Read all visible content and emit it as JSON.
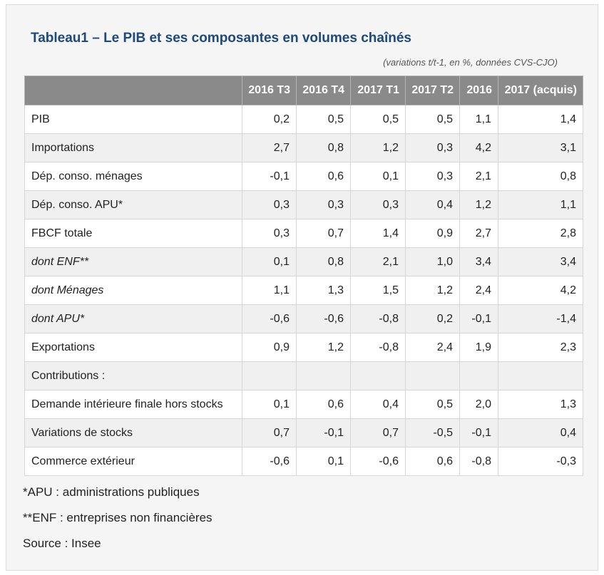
{
  "title": "Tableau1 – Le PIB et ses composantes en volumes chaînés",
  "subtitle": "(variations t/t-1, en %, données CVS-CJO)",
  "table": {
    "header_first": "",
    "headers": [
      "2016 T3",
      "2016 T4",
      "2017 T1",
      "2017 T2",
      "2016",
      "2017 (acquis)"
    ],
    "rows": [
      {
        "label": "PIB",
        "italic": false,
        "values": [
          "0,2",
          "0,5",
          "0,5",
          "0,5",
          "1,1",
          "1,4"
        ]
      },
      {
        "label": "Importations",
        "italic": false,
        "values": [
          "2,7",
          "0,8",
          "1,2",
          "0,3",
          "4,2",
          "3,1"
        ]
      },
      {
        "label": "Dép. conso. ménages",
        "italic": false,
        "values": [
          "-0,1",
          "0,6",
          "0,1",
          "0,3",
          "2,1",
          "0,8"
        ]
      },
      {
        "label": "Dép. conso. APU*",
        "italic": false,
        "values": [
          "0,3",
          "0,3",
          "0,3",
          "0,4",
          "1,2",
          "1,1"
        ]
      },
      {
        "label": "FBCF totale",
        "italic": false,
        "values": [
          "0,3",
          "0,7",
          "1,4",
          "0,9",
          "2,7",
          "2,8"
        ]
      },
      {
        "label": "dont ENF**",
        "italic": true,
        "values": [
          "0,1",
          "0,8",
          "2,1",
          "1,0",
          "3,4",
          "3,4"
        ]
      },
      {
        "label": "dont Ménages",
        "italic": true,
        "values": [
          "1,1",
          "1,3",
          "1,5",
          "1,2",
          "2,4",
          "4,2"
        ]
      },
      {
        "label": "dont APU*",
        "italic": true,
        "values": [
          "-0,6",
          "-0,6",
          "-0,8",
          "0,2",
          "-0,1",
          "-1,4"
        ]
      },
      {
        "label": "Exportations",
        "italic": false,
        "values": [
          "0,9",
          "1,2",
          "-0,8",
          "2,4",
          "1,9",
          "2,3"
        ]
      },
      {
        "label": "Contributions :",
        "italic": false,
        "values": [
          "",
          "",
          "",
          "",
          "",
          ""
        ]
      },
      {
        "label": "Demande intérieure finale hors stocks",
        "italic": false,
        "values": [
          "0,1",
          "0,6",
          "0,4",
          "0,5",
          "2,0",
          "1,3"
        ]
      },
      {
        "label": "Variations de stocks",
        "italic": false,
        "values": [
          "0,7",
          "-0,1",
          "0,7",
          "-0,5",
          "-0,1",
          "0,4"
        ]
      },
      {
        "label": "Commerce extérieur",
        "italic": false,
        "values": [
          "-0,6",
          "0,1",
          "-0,6",
          "0,6",
          "-0,8",
          "-0,3"
        ]
      }
    ]
  },
  "notes": [
    "*APU : administrations publiques",
    "**ENF : entreprises non financières",
    "Source : Insee"
  ]
}
